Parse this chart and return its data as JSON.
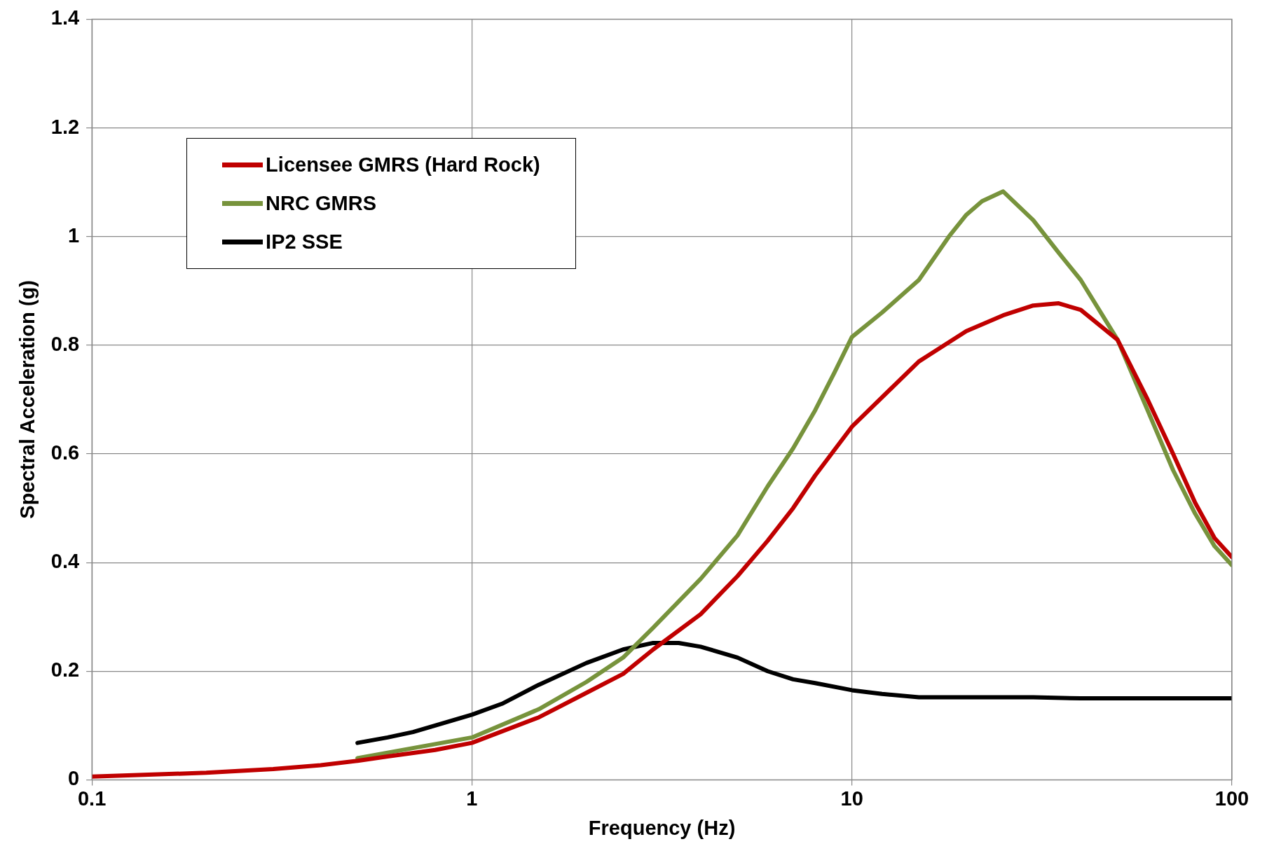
{
  "chart_data": {
    "type": "line",
    "xlabel": "Frequency (Hz)",
    "ylabel": "Spectral Acceleration (g)",
    "log": "x",
    "xlim": [
      0.1,
      100
    ],
    "xticks": [
      0.1,
      1,
      10,
      100
    ],
    "ylim": [
      0,
      1.4
    ],
    "yticks": [
      0,
      0.2,
      0.4,
      0.6,
      0.8,
      1,
      1.2,
      1.4
    ],
    "grid": true,
    "legend": "top left",
    "marker": "none",
    "series": [
      {
        "name": "Licensee GMRS (Hard Rock)",
        "color": "#c00000",
        "x": [
          0.1,
          0.2,
          0.3,
          0.4,
          0.5,
          0.6,
          0.8,
          1,
          1.5,
          2,
          2.5,
          3,
          4,
          5,
          6,
          7,
          8,
          10,
          15,
          20,
          25,
          30,
          35,
          40,
          50,
          60,
          70,
          80,
          90,
          100
        ],
        "values": [
          0.006,
          0.013,
          0.02,
          0.027,
          0.035,
          0.043,
          0.055,
          0.068,
          0.115,
          0.16,
          0.195,
          0.24,
          0.305,
          0.375,
          0.44,
          0.5,
          0.56,
          0.65,
          0.77,
          0.826,
          0.855,
          0.873,
          0.877,
          0.865,
          0.81,
          0.7,
          0.6,
          0.51,
          0.445,
          0.41
        ]
      },
      {
        "name": "NRC GMRS",
        "color": "#77933c",
        "x": [
          0.5,
          1,
          1.5,
          2,
          2.5,
          3,
          4,
          5,
          6,
          7,
          8,
          9,
          10,
          12,
          15,
          18,
          20,
          22,
          25,
          30,
          35,
          40,
          50,
          60,
          70,
          80,
          90,
          100
        ],
        "values": [
          0.04,
          0.078,
          0.13,
          0.18,
          0.225,
          0.28,
          0.37,
          0.45,
          0.54,
          0.61,
          0.68,
          0.75,
          0.815,
          0.86,
          0.92,
          1.0,
          1.04,
          1.065,
          1.083,
          1.03,
          0.97,
          0.92,
          0.81,
          0.68,
          0.57,
          0.49,
          0.43,
          0.395
        ]
      },
      {
        "name": "IP2 SSE",
        "color": "#000000",
        "x": [
          0.5,
          0.6,
          0.7,
          0.8,
          1,
          1.2,
          1.5,
          2,
          2.5,
          3,
          3.5,
          4,
          5,
          6,
          7,
          8,
          10,
          12,
          15,
          20,
          30,
          40,
          100
        ],
        "values": [
          0.068,
          0.078,
          0.088,
          0.1,
          0.12,
          0.14,
          0.175,
          0.215,
          0.24,
          0.252,
          0.252,
          0.245,
          0.225,
          0.2,
          0.185,
          0.178,
          0.165,
          0.158,
          0.152,
          0.152,
          0.152,
          0.15,
          0.15
        ]
      }
    ]
  }
}
